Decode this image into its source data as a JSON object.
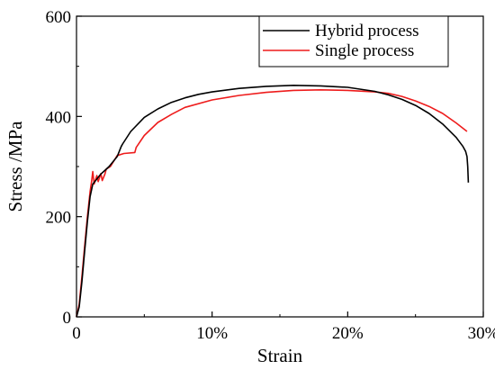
{
  "chart_data": {
    "type": "line",
    "title": "",
    "xlabel": "Strain",
    "ylabel": "Stress /MPa",
    "xlim": [
      0,
      0.3
    ],
    "ylim": [
      0,
      600
    ],
    "x_ticks": [
      0,
      0.1,
      0.2,
      0.3
    ],
    "x_tick_labels": [
      "0",
      "10%",
      "20%",
      "30%"
    ],
    "y_ticks": [
      0,
      200,
      400,
      600
    ],
    "y_tick_labels": [
      "0",
      "200",
      "400",
      "600"
    ],
    "legend_placement": "top-right",
    "grid": false,
    "series": [
      {
        "name": "Hybrid process",
        "color": "#000000",
        "x": [
          0,
          0.002,
          0.004,
          0.006,
          0.008,
          0.01,
          0.012,
          0.015,
          0.018,
          0.02,
          0.024,
          0.03,
          0.033,
          0.034,
          0.04,
          0.05,
          0.06,
          0.07,
          0.08,
          0.09,
          0.1,
          0.12,
          0.14,
          0.16,
          0.18,
          0.2,
          0.22,
          0.23,
          0.24,
          0.25,
          0.26,
          0.27,
          0.28,
          0.285,
          0.287,
          0.288,
          0.2885,
          0.289
        ],
        "y": [
          0,
          20,
          70,
          130,
          190,
          240,
          265,
          275,
          285,
          290,
          300,
          320,
          340,
          345,
          370,
          398,
          415,
          428,
          437,
          444,
          449,
          456,
          460,
          462,
          461,
          458,
          450,
          443,
          434,
          422,
          406,
          385,
          358,
          340,
          330,
          320,
          300,
          268
        ]
      },
      {
        "name": "Single process",
        "color": "#ee1c1c",
        "x": [
          0,
          0.002,
          0.004,
          0.006,
          0.008,
          0.01,
          0.011,
          0.012,
          0.013,
          0.015,
          0.016,
          0.018,
          0.019,
          0.021,
          0.022,
          0.025,
          0.03,
          0.035,
          0.043,
          0.044,
          0.05,
          0.06,
          0.07,
          0.08,
          0.1,
          0.12,
          0.14,
          0.16,
          0.18,
          0.2,
          0.22,
          0.23,
          0.24,
          0.25,
          0.26,
          0.27,
          0.28,
          0.288
        ],
        "y": [
          0,
          25,
          80,
          140,
          200,
          250,
          268,
          290,
          265,
          282,
          270,
          286,
          272,
          285,
          295,
          300,
          322,
          326,
          328,
          338,
          362,
          388,
          404,
          418,
          433,
          442,
          448,
          452,
          453,
          452,
          449,
          446,
          440,
          431,
          420,
          406,
          387,
          370
        ]
      }
    ]
  }
}
